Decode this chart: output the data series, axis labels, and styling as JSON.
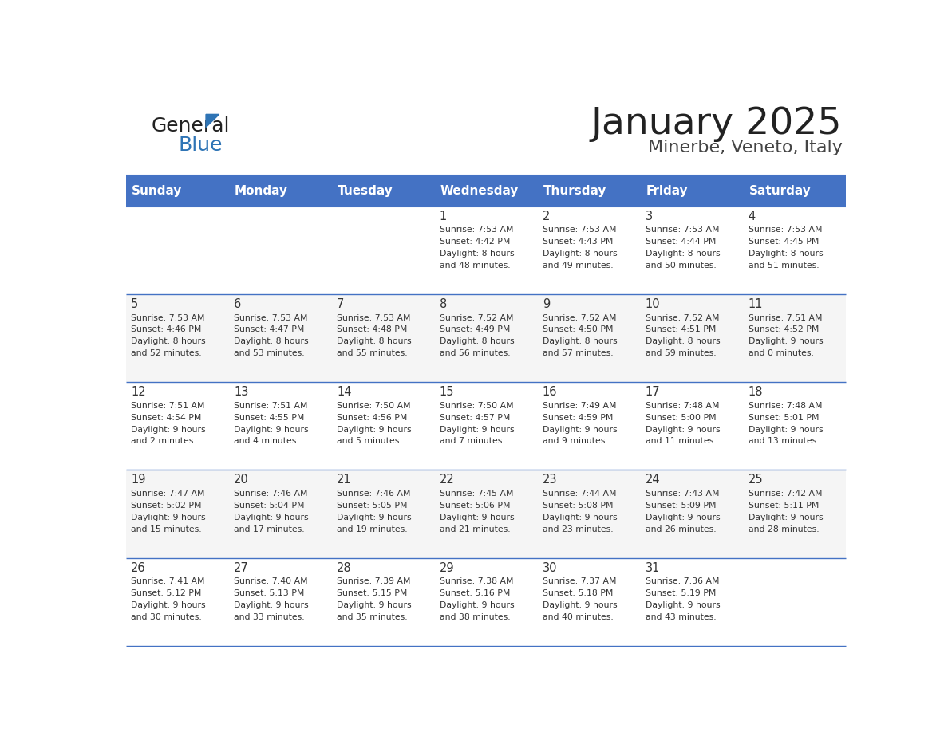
{
  "title": "January 2025",
  "subtitle": "Minerbe, Veneto, Italy",
  "header_bg": "#4472C4",
  "header_text_color": "#FFFFFF",
  "weekdays": [
    "Sunday",
    "Monday",
    "Tuesday",
    "Wednesday",
    "Thursday",
    "Friday",
    "Saturday"
  ],
  "cell_text_color": "#333333",
  "border_color": "#4472C4",
  "days": [
    {
      "date": 1,
      "col": 3,
      "row": 0,
      "sunrise": "7:53 AM",
      "sunset": "4:42 PM",
      "daylight": "8 hours and 48 minutes"
    },
    {
      "date": 2,
      "col": 4,
      "row": 0,
      "sunrise": "7:53 AM",
      "sunset": "4:43 PM",
      "daylight": "8 hours and 49 minutes"
    },
    {
      "date": 3,
      "col": 5,
      "row": 0,
      "sunrise": "7:53 AM",
      "sunset": "4:44 PM",
      "daylight": "8 hours and 50 minutes"
    },
    {
      "date": 4,
      "col": 6,
      "row": 0,
      "sunrise": "7:53 AM",
      "sunset": "4:45 PM",
      "daylight": "8 hours and 51 minutes"
    },
    {
      "date": 5,
      "col": 0,
      "row": 1,
      "sunrise": "7:53 AM",
      "sunset": "4:46 PM",
      "daylight": "8 hours and 52 minutes"
    },
    {
      "date": 6,
      "col": 1,
      "row": 1,
      "sunrise": "7:53 AM",
      "sunset": "4:47 PM",
      "daylight": "8 hours and 53 minutes"
    },
    {
      "date": 7,
      "col": 2,
      "row": 1,
      "sunrise": "7:53 AM",
      "sunset": "4:48 PM",
      "daylight": "8 hours and 55 minutes"
    },
    {
      "date": 8,
      "col": 3,
      "row": 1,
      "sunrise": "7:52 AM",
      "sunset": "4:49 PM",
      "daylight": "8 hours and 56 minutes"
    },
    {
      "date": 9,
      "col": 4,
      "row": 1,
      "sunrise": "7:52 AM",
      "sunset": "4:50 PM",
      "daylight": "8 hours and 57 minutes"
    },
    {
      "date": 10,
      "col": 5,
      "row": 1,
      "sunrise": "7:52 AM",
      "sunset": "4:51 PM",
      "daylight": "8 hours and 59 minutes"
    },
    {
      "date": 11,
      "col": 6,
      "row": 1,
      "sunrise": "7:51 AM",
      "sunset": "4:52 PM",
      "daylight": "9 hours and 0 minutes"
    },
    {
      "date": 12,
      "col": 0,
      "row": 2,
      "sunrise": "7:51 AM",
      "sunset": "4:54 PM",
      "daylight": "9 hours and 2 minutes"
    },
    {
      "date": 13,
      "col": 1,
      "row": 2,
      "sunrise": "7:51 AM",
      "sunset": "4:55 PM",
      "daylight": "9 hours and 4 minutes"
    },
    {
      "date": 14,
      "col": 2,
      "row": 2,
      "sunrise": "7:50 AM",
      "sunset": "4:56 PM",
      "daylight": "9 hours and 5 minutes"
    },
    {
      "date": 15,
      "col": 3,
      "row": 2,
      "sunrise": "7:50 AM",
      "sunset": "4:57 PM",
      "daylight": "9 hours and 7 minutes"
    },
    {
      "date": 16,
      "col": 4,
      "row": 2,
      "sunrise": "7:49 AM",
      "sunset": "4:59 PM",
      "daylight": "9 hours and 9 minutes"
    },
    {
      "date": 17,
      "col": 5,
      "row": 2,
      "sunrise": "7:48 AM",
      "sunset": "5:00 PM",
      "daylight": "9 hours and 11 minutes"
    },
    {
      "date": 18,
      "col": 6,
      "row": 2,
      "sunrise": "7:48 AM",
      "sunset": "5:01 PM",
      "daylight": "9 hours and 13 minutes"
    },
    {
      "date": 19,
      "col": 0,
      "row": 3,
      "sunrise": "7:47 AM",
      "sunset": "5:02 PM",
      "daylight": "9 hours and 15 minutes"
    },
    {
      "date": 20,
      "col": 1,
      "row": 3,
      "sunrise": "7:46 AM",
      "sunset": "5:04 PM",
      "daylight": "9 hours and 17 minutes"
    },
    {
      "date": 21,
      "col": 2,
      "row": 3,
      "sunrise": "7:46 AM",
      "sunset": "5:05 PM",
      "daylight": "9 hours and 19 minutes"
    },
    {
      "date": 22,
      "col": 3,
      "row": 3,
      "sunrise": "7:45 AM",
      "sunset": "5:06 PM",
      "daylight": "9 hours and 21 minutes"
    },
    {
      "date": 23,
      "col": 4,
      "row": 3,
      "sunrise": "7:44 AM",
      "sunset": "5:08 PM",
      "daylight": "9 hours and 23 minutes"
    },
    {
      "date": 24,
      "col": 5,
      "row": 3,
      "sunrise": "7:43 AM",
      "sunset": "5:09 PM",
      "daylight": "9 hours and 26 minutes"
    },
    {
      "date": 25,
      "col": 6,
      "row": 3,
      "sunrise": "7:42 AM",
      "sunset": "5:11 PM",
      "daylight": "9 hours and 28 minutes"
    },
    {
      "date": 26,
      "col": 0,
      "row": 4,
      "sunrise": "7:41 AM",
      "sunset": "5:12 PM",
      "daylight": "9 hours and 30 minutes"
    },
    {
      "date": 27,
      "col": 1,
      "row": 4,
      "sunrise": "7:40 AM",
      "sunset": "5:13 PM",
      "daylight": "9 hours and 33 minutes"
    },
    {
      "date": 28,
      "col": 2,
      "row": 4,
      "sunrise": "7:39 AM",
      "sunset": "5:15 PM",
      "daylight": "9 hours and 35 minutes"
    },
    {
      "date": 29,
      "col": 3,
      "row": 4,
      "sunrise": "7:38 AM",
      "sunset": "5:16 PM",
      "daylight": "9 hours and 38 minutes"
    },
    {
      "date": 30,
      "col": 4,
      "row": 4,
      "sunrise": "7:37 AM",
      "sunset": "5:18 PM",
      "daylight": "9 hours and 40 minutes"
    },
    {
      "date": 31,
      "col": 5,
      "row": 4,
      "sunrise": "7:36 AM",
      "sunset": "5:19 PM",
      "daylight": "9 hours and 43 minutes"
    }
  ],
  "logo_text1": "General",
  "logo_text2": "Blue",
  "logo_text_color1": "#222222",
  "logo_text_color2": "#2E74B5",
  "logo_triangle_color": "#2E74B5"
}
